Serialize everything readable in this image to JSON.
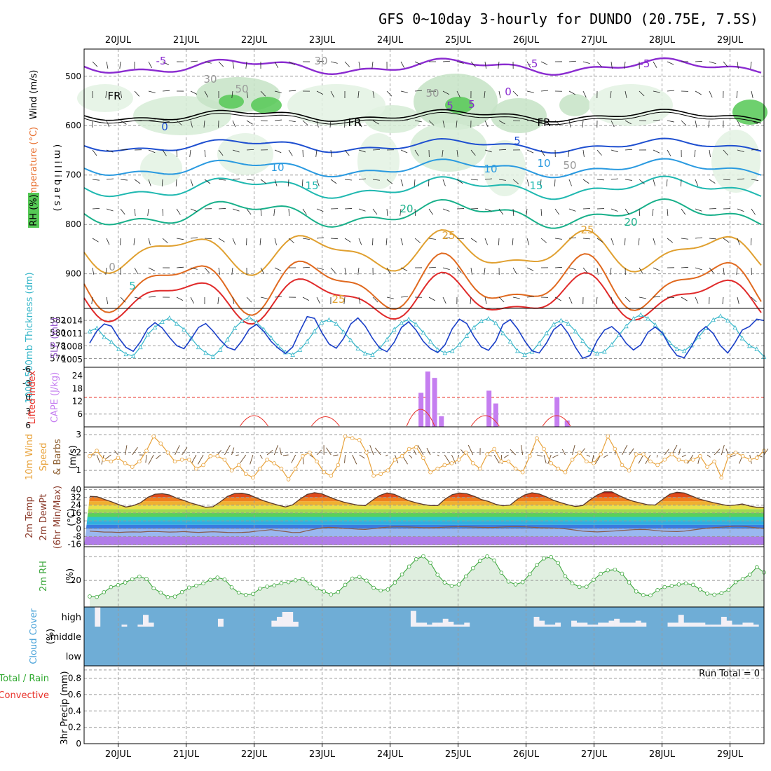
{
  "title": "GFS 0~10day 3-hourly for DUNDO (20.75E, 7.5S)",
  "dates": [
    "20JUL",
    "21JUL",
    "22JUL",
    "23JUL",
    "24JUL",
    "25JUL",
    "26JUL",
    "27JUL",
    "28JUL",
    "29JUL"
  ],
  "colors": {
    "rh": "#55c855",
    "temp": "#ff4f2f",
    "wind": "#000000",
    "thickness": "#33b5c8",
    "slp": "#9b5fd0",
    "cape": "#c57ef0",
    "lifted": "#e8322a",
    "wind10": "#e8a23a",
    "speed": "#e8a23a",
    "dewpt": "#2a8a8a",
    "rh2m": "#3ea83e",
    "cloud": "#4aa3d9",
    "precip_total": "#2ea82e",
    "precip_conv": "#e8322a",
    "cloud_bg": "#6fadd6",
    "freeze": "#000000"
  },
  "chart_data": [
    {
      "panel": "upper_air",
      "type": "contour",
      "ylabel_parts": [
        "Wind (m/s)",
        "Temperature (°C)",
        "RH (%)"
      ],
      "ylabel_axis": "(millibars)",
      "yticks": [
        500,
        600,
        700,
        800,
        900
      ],
      "ylim": [
        970,
        445
      ],
      "contour_labels": [
        "-5",
        "-5",
        "-5",
        "5",
        "5",
        "0",
        "0",
        "FR",
        "FR",
        "FR",
        "5",
        "5",
        "10",
        "10",
        "10",
        "15",
        "15",
        "20",
        "20",
        "25",
        "25",
        "25",
        "0",
        "30",
        "30",
        "50",
        "50",
        "50"
      ],
      "temperature_levels_c": [
        -5,
        0,
        5,
        10,
        15,
        20,
        25
      ],
      "freezing_level_mb": 600
    },
    {
      "panel": "thickness_slp",
      "type": "line",
      "ylabel_left": "1000-500mb Thickness (dm)",
      "ylabel_right": "SLP (mb)",
      "yticks_left": [
        576,
        578,
        580,
        582
      ],
      "yticks_right": [
        1005,
        1008,
        1011,
        1014
      ],
      "thickness_series": {
        "name": "Thickness",
        "values": [
          580.3,
          580.8,
          579.4,
          578.6,
          577.5,
          576.7,
          576.4,
          577.8,
          579.8,
          580.9,
          581.8,
          582.4,
          581.5,
          580.6,
          579.2,
          577.8,
          576.9,
          576.3,
          577.4,
          579.0,
          580.8,
          581.9,
          582.5,
          581.7,
          580.6,
          579.3,
          578.0,
          577.0,
          576.6,
          577.4,
          578.7,
          580.3,
          581.7,
          582.1,
          581.5,
          580.2,
          578.9,
          577.6,
          576.8,
          576.6,
          577.6,
          579.0,
          580.6,
          581.6,
          582.2,
          581.4,
          580.1,
          578.7,
          577.4,
          576.9,
          577.2,
          578.2,
          579.6,
          580.9,
          581.9,
          582.3,
          581.6,
          580.0,
          578.7,
          577.2,
          576.6,
          577.1,
          578.4,
          580.0,
          581.4,
          582.0,
          581.5,
          580.3,
          578.8,
          577.4,
          576.8,
          577.1,
          578.2,
          579.7,
          581.1,
          582.3,
          582.9,
          582.3,
          581.3,
          580.0,
          578.5,
          577.5,
          577.2,
          578.1,
          579.4,
          580.8,
          582.1,
          582.7,
          582.0,
          580.9,
          579.2,
          578.0,
          577.5,
          576.3
        ]
      },
      "slp_series": {
        "name": "SLP",
        "values": [
          1008.8,
          1011.6,
          1013.2,
          1012.7,
          1010.0,
          1007.8,
          1006.9,
          1009.1,
          1012.1,
          1013.5,
          1012.3,
          1010.1,
          1008.2,
          1007.5,
          1009.8,
          1012.4,
          1013.3,
          1011.6,
          1009.5,
          1007.8,
          1007.2,
          1009.3,
          1012.0,
          1013.1,
          1011.5,
          1009.2,
          1007.6,
          1006.4,
          1007.9,
          1011.6,
          1014.9,
          1014.5,
          1011.3,
          1008.6,
          1007.6,
          1009.8,
          1013.2,
          1014.6,
          1012.7,
          1009.9,
          1007.6,
          1006.8,
          1009.0,
          1012.4,
          1013.7,
          1011.8,
          1009.2,
          1007.5,
          1006.6,
          1008.4,
          1012.1,
          1014.3,
          1013.3,
          1010.3,
          1007.9,
          1007.1,
          1009.2,
          1013.1,
          1014.2,
          1012.1,
          1009.3,
          1007.0,
          1006.5,
          1008.8,
          1011.9,
          1013.2,
          1011.0,
          1007.8,
          1005.3,
          1005.9,
          1009.4,
          1011.8,
          1012.6,
          1011.1,
          1008.7,
          1007.2,
          1008.4,
          1011.3,
          1012.5,
          1011.1,
          1008.1,
          1005.9,
          1005.4,
          1008.0,
          1011.2,
          1012.6,
          1011.0,
          1008.2,
          1006.5,
          1008.9,
          1011.8,
          1012.6,
          1014.3,
          1014.0
        ]
      }
    },
    {
      "panel": "cape_li",
      "type": "bar",
      "ylabel_left": "Lifted Index",
      "ylabel_right": "CAPE (J/kg)",
      "yticks_left": [
        "6",
        "0",
        "-6"
      ],
      "yticks_inner": [
        "24",
        "18",
        "12",
        "6"
      ],
      "yticks_left_extra": [
        "-6",
        "-3",
        "0",
        "3",
        "6"
      ],
      "cape_bars": [
        {
          "day": 4.95,
          "value": 16
        },
        {
          "day": 5.05,
          "value": 26
        },
        {
          "day": 5.15,
          "value": 23
        },
        {
          "day": 5.25,
          "value": 5
        },
        {
          "day": 5.95,
          "value": 17
        },
        {
          "day": 6.05,
          "value": 11
        },
        {
          "day": 6.95,
          "value": 14
        },
        {
          "day": 7.1,
          "value": 3
        }
      ],
      "li_bumps": [
        {
          "day": 2.5,
          "value": 5
        },
        {
          "day": 3.55,
          "value": 4.5
        },
        {
          "day": 4.95,
          "value": 8
        },
        {
          "day": 5.9,
          "value": 5
        },
        {
          "day": 6.95,
          "value": 5
        }
      ]
    },
    {
      "panel": "wind10",
      "type": "line",
      "ylabel": "10m Wind Speed & Barbs",
      "yunit": "(m/s)",
      "yticks": [
        1,
        2,
        3
      ],
      "speed_series": {
        "name": "Speed",
        "values": [
          1.8,
          2.1,
          1.6,
          1.5,
          1.7,
          1.4,
          1.2,
          1.5,
          2.1,
          2.9,
          2.5,
          2.0,
          1.5,
          1.6,
          1.6,
          1.1,
          1.3,
          1.8,
          1.8,
          1.6,
          1.0,
          1.3,
          0.8,
          0.6,
          1.1,
          1.6,
          1.4,
          1.1,
          0.5,
          1.1,
          1.8,
          2.0,
          1.5,
          0.9,
          0.7,
          1.3,
          2.9,
          2.8,
          2.7,
          2.0,
          0.7,
          0.8,
          1.0,
          1.6,
          1.8,
          2.2,
          2.3,
          1.7,
          0.9,
          1.1,
          1.3,
          1.4,
          1.6,
          2.0,
          1.4,
          1.1,
          1.9,
          2.2,
          1.5,
          1.5,
          1.1,
          0.9,
          1.8,
          2.8,
          2.2,
          1.4,
          1.1,
          0.9,
          1.6,
          2.0,
          1.5,
          1.4,
          1.9,
          2.9,
          2.2,
          1.3,
          1.0,
          1.9,
          1.9,
          1.5,
          1.3,
          1.6,
          1.9,
          1.6,
          1.5,
          1.6,
          1.8,
          1.2,
          1.5,
          0.6,
          1.8,
          2.0,
          1.8,
          1.6,
          1.7,
          2.1
        ]
      }
    },
    {
      "panel": "temp2m",
      "type": "area",
      "ylabel": "2m Temp 2m DewPt (6hr Min/Max) (°C)",
      "yticks": [
        "40",
        "32",
        "24",
        "16",
        "8",
        "0",
        "-8",
        "-16"
      ],
      "temp_series": {
        "name": "Temp",
        "values": [
          33.0,
          32.6,
          30.0,
          27.5,
          24.6,
          22.1,
          23.5,
          26.5,
          32.0,
          35.2,
          35.8,
          34.5,
          31.2,
          28.8,
          26.1,
          24.0,
          21.9,
          22.4,
          27.4,
          33.0,
          36.0,
          36.2,
          34.7,
          31.3,
          28.5,
          26.2,
          24.0,
          22.2,
          24.4,
          30.2,
          35.0,
          36.8,
          35.6,
          32.5,
          29.6,
          27.2,
          25.5,
          24.0,
          23.5,
          29.1,
          34.0,
          36.5,
          35.1,
          31.8,
          28.6,
          26.5,
          24.8,
          23.6,
          23.6,
          30.2,
          34.8,
          36.4,
          35.7,
          33.2,
          29.8,
          27.8,
          24.9,
          23.4,
          24.2,
          30.2,
          34.5,
          36.6,
          35.4,
          32.4,
          28.9,
          26.5,
          24.4,
          22.7,
          23.7,
          29.4,
          34.4,
          37.7,
          37.7,
          34.0,
          30.4,
          28.0,
          26.1,
          24.4,
          24.2,
          29.8,
          35.2,
          37.2,
          36.4,
          33.5,
          30.5,
          28.5,
          26.6,
          25.0,
          23.5,
          24.1,
          25.2,
          23.2,
          21.8,
          21.8
        ]
      },
      "dewpt_series": {
        "name": "DewPt",
        "values": [
          -2.5,
          -3.0,
          -3.5,
          -3.5,
          -3.8,
          -3.5,
          -3.3,
          -3.5,
          -3.0,
          -2.8,
          -3.2,
          -3.5,
          -3.3,
          -3.0,
          -3.5,
          -3.8,
          -3.5,
          -3.2,
          -3.5,
          -3.8,
          -4.0,
          -3.8,
          -3.5,
          -2.5,
          -1.8,
          -1.0,
          -2.0,
          -3.0,
          -4.0,
          -3.8,
          -2.0,
          -0.5,
          0.8,
          1.3,
          1.0,
          0.5,
          0.0,
          -0.5,
          -0.8,
          0.0,
          0.8,
          1.5,
          1.8,
          1.8,
          1.7,
          1.4,
          1.0,
          1.0,
          1.2,
          1.6,
          1.9,
          2.0,
          1.9,
          1.6,
          1.3,
          1.2,
          1.3,
          1.7,
          2.0,
          2.0,
          1.8,
          1.5,
          1.0,
          0.8,
          0.7,
          0.3,
          -0.5,
          -1.5,
          -2.5,
          -3.0,
          -3.3,
          -3.0,
          -2.5,
          -2.0,
          -1.5,
          -1.0,
          -0.8,
          -1.0,
          -1.8,
          -2.5,
          -2.8,
          -3.0,
          -2.5,
          -1.5,
          -0.5,
          0.5,
          1.0,
          1.5,
          2.0,
          2.5,
          2.5,
          1.7,
          0.8,
          0.5
        ]
      }
    },
    {
      "panel": "rh2m",
      "type": "area",
      "ylabel": "2m RH",
      "yunit": "(%)",
      "yticks": [
        20
      ],
      "rh_series": {
        "name": "RH",
        "values": [
          6.5,
          6.1,
          10.1,
          14.4,
          16.1,
          18.2,
          21.0,
          23.3,
          21.3,
          13.4,
          9.8,
          6.0,
          6.4,
          10.2,
          14.0,
          15.6,
          17.5,
          20.5,
          22.4,
          20.8,
          14.2,
          9.7,
          7.8,
          8.6,
          13.1,
          14.8,
          15.8,
          17.7,
          18.5,
          20.1,
          21.3,
          17.4,
          13.3,
          10.7,
          8.2,
          10.2,
          16.3,
          21.6,
          22.9,
          19.9,
          13.8,
          11.5,
          12.4,
          18.2,
          25.0,
          31.7,
          37.9,
          40.3,
          34.8,
          24.8,
          18.2,
          15.4,
          16.6,
          23.4,
          30.3,
          36.5,
          40.2,
          36.8,
          26.5,
          19.0,
          16.6,
          18.5,
          25.2,
          33.0,
          38.5,
          39.7,
          34.6,
          23.5,
          17.5,
          14.5,
          14.7,
          20.6,
          25.6,
          28.5,
          29.1,
          25.7,
          18.3,
          10.7,
          7.7,
          7.4,
          11.9,
          14.4,
          15.4,
          16.6,
          17.5,
          16.3,
          12.4,
          8.9,
          8.0,
          9.3,
          12.1,
          18.5,
          21.2,
          24.8,
          31.2,
          26.7
        ]
      }
    },
    {
      "panel": "cloud",
      "type": "bar",
      "ylabel": "Cloud Cover (%)",
      "levels": [
        "high",
        "middle",
        "low"
      ],
      "high": [
        0,
        0,
        100,
        0,
        0,
        0,
        0,
        10,
        0,
        0,
        10,
        60,
        20,
        0,
        0,
        0,
        0,
        0,
        0,
        0,
        0,
        0,
        0,
        0,
        0,
        40,
        0,
        0,
        0,
        0,
        0,
        0,
        0,
        0,
        0,
        30,
        50,
        75,
        75,
        25,
        0,
        0,
        0,
        0,
        0,
        0,
        0,
        0,
        0,
        0,
        0,
        0,
        0,
        0,
        0,
        0,
        0,
        0,
        0,
        0,
        0,
        80,
        20,
        20,
        10,
        20,
        20,
        40,
        25,
        10,
        10,
        20,
        0,
        0,
        0,
        0,
        0,
        0,
        0,
        0,
        0,
        0,
        0,
        0,
        50,
        30,
        10,
        10,
        20,
        0,
        0,
        30,
        20,
        20,
        10,
        10,
        20,
        20,
        30,
        40,
        20,
        20,
        20,
        30,
        20,
        0,
        0,
        0,
        0,
        20,
        20,
        60,
        20,
        20,
        20,
        20,
        10,
        10,
        10,
        50,
        30,
        10,
        10,
        20,
        20,
        10,
        0
      ],
      "middle": [
        0,
        0,
        0,
        0,
        0,
        0,
        0,
        0,
        0,
        0,
        0,
        0,
        0,
        0,
        0,
        0,
        0,
        0,
        0,
        0,
        0,
        0,
        0,
        0,
        0,
        0,
        0,
        0,
        0,
        0,
        0,
        0,
        0,
        0,
        0,
        0,
        0,
        0,
        0,
        0,
        0,
        0,
        0,
        0,
        0,
        0,
        0,
        0,
        0,
        0,
        0,
        0,
        0,
        0,
        0,
        0,
        0,
        0,
        0,
        0,
        0,
        0,
        0,
        0,
        0,
        0,
        0,
        0,
        0,
        0,
        0,
        0,
        0,
        0,
        0,
        0,
        0,
        0,
        0,
        0,
        0,
        0,
        0,
        0,
        0,
        0,
        0,
        0,
        0,
        0,
        0,
        0,
        0,
        0,
        0,
        0,
        0,
        0,
        0,
        0,
        0,
        0,
        0,
        0,
        0,
        0,
        0,
        0,
        0,
        0,
        0,
        0,
        0,
        0,
        0,
        0,
        0,
        0,
        0,
        0,
        0,
        0,
        0,
        0,
        0,
        0,
        0,
        0,
        0,
        0,
        0
      ],
      "low": [
        0,
        0,
        0,
        0,
        0,
        0,
        0,
        0,
        0,
        0,
        0,
        0,
        0,
        0,
        0,
        0,
        0,
        0,
        0,
        0,
        0,
        0,
        0,
        0,
        0,
        0,
        0,
        0,
        0,
        0,
        0,
        0,
        0,
        0,
        0,
        0,
        0,
        0,
        0,
        0,
        0,
        0,
        0,
        0,
        0,
        0,
        0,
        0,
        0,
        0,
        0,
        0,
        0,
        0,
        0,
        0,
        0,
        0,
        0,
        0,
        0,
        0,
        0,
        0,
        0,
        0,
        0,
        0,
        0,
        0,
        0,
        0,
        0,
        0,
        0,
        0,
        0,
        0,
        0,
        0,
        0,
        0,
        0,
        0,
        0,
        0,
        0,
        0,
        0,
        0,
        0,
        0,
        0,
        0,
        0,
        0,
        0,
        0,
        0,
        0,
        0,
        0,
        0,
        0,
        0,
        0,
        0,
        0,
        0,
        0,
        0,
        0,
        0,
        0,
        0,
        0,
        0,
        0,
        0,
        0,
        0,
        0,
        0,
        0,
        0,
        0,
        0,
        0,
        0,
        0,
        0
      ]
    },
    {
      "panel": "precip",
      "type": "bar",
      "ylabel_total": "Total / Rain",
      "ylabel_conv": "Convective",
      "ylabel_axis": "3hr Precip (mm)",
      "yticks": [
        "0.8",
        "0.6",
        "0.4",
        "0.2",
        "0"
      ],
      "yticks_values": [
        0.8,
        0.6,
        0.4,
        0.2,
        0
      ],
      "ylim": [
        0,
        0.95
      ],
      "run_total_label": "Run Total = 0",
      "values": []
    }
  ]
}
